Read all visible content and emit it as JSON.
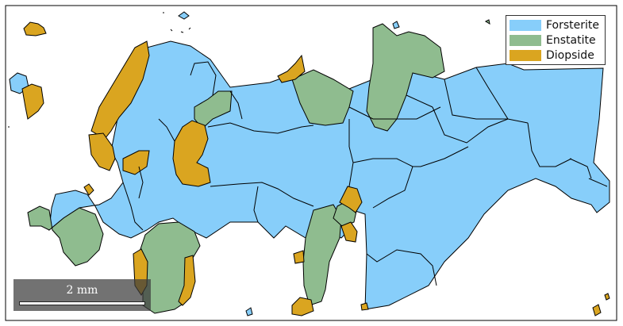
{
  "legend": {
    "items": [
      {
        "label": "Forsterite",
        "color": "#87cefa"
      },
      {
        "label": "Enstatite",
        "color": "#8fbc8f"
      },
      {
        "label": "Diopside",
        "color": "#daa520"
      }
    ]
  },
  "scalebar": {
    "label": "2 mm"
  },
  "colors": {
    "forsterite": "#87cefa",
    "enstatite": "#8fbc8f",
    "diopside": "#daa520",
    "boundary": "#000000",
    "background": "#ffffff"
  }
}
